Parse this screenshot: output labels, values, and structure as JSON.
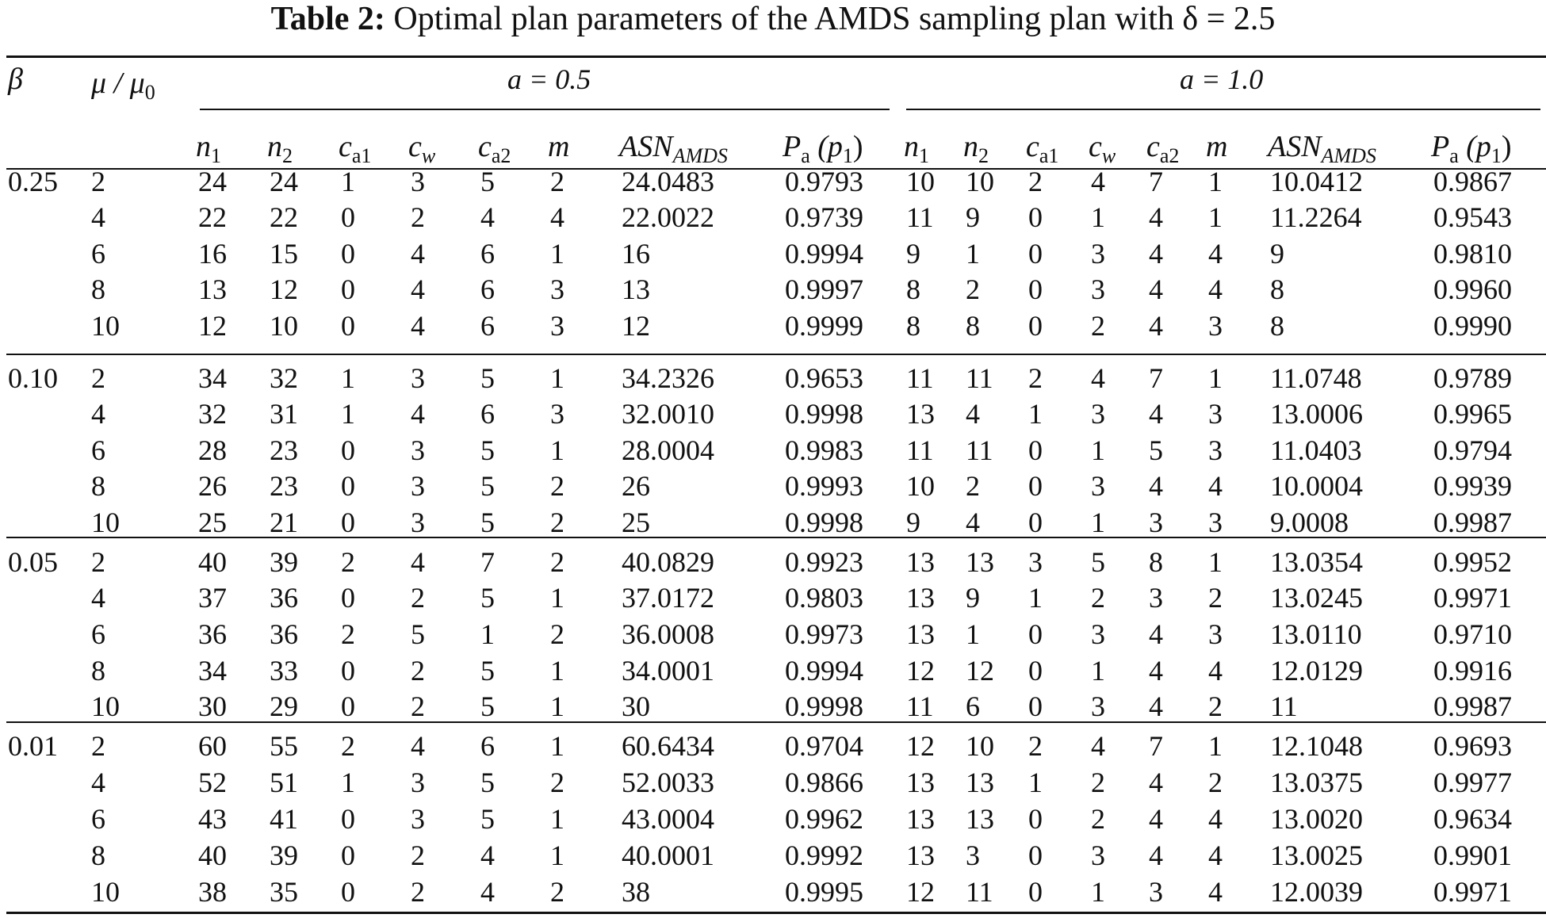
{
  "title": {
    "label": "Table 2:",
    "text": "Optimal plan parameters of the AMDS sampling plan with δ = 2.5"
  },
  "header": {
    "beta": "β",
    "ratio": "μ / μ",
    "ratio_sub": "0",
    "group_a": "a = 0.5",
    "group_b": "a = 1.0",
    "cols": [
      {
        "main": "n",
        "sub": "1"
      },
      {
        "main": "n",
        "sub": "2"
      },
      {
        "main": "c",
        "sub": "a1"
      },
      {
        "main": "c",
        "sub": "w"
      },
      {
        "main": "c",
        "sub": "a2"
      },
      {
        "main": "m",
        "sub": ""
      },
      {
        "main": "ASN",
        "sub": "AMDS"
      },
      {
        "main": "P",
        "sub": "a",
        "tail": " (p",
        "tail_sub": "1",
        "close": ")"
      }
    ]
  },
  "rows": [
    {
      "beta": "0.25",
      "ratio": "2",
      "a05": [
        "24",
        "24",
        "1",
        "3",
        "5",
        "2",
        "24.0483",
        "0.9793"
      ],
      "a10": [
        "10",
        "10",
        "2",
        "4",
        "7",
        "1",
        "10.0412",
        "0.9867"
      ]
    },
    {
      "beta": "",
      "ratio": "4",
      "a05": [
        "22",
        "22",
        "0",
        "2",
        "4",
        "4",
        "22.0022",
        "0.9739"
      ],
      "a10": [
        "11",
        "9",
        "0",
        "1",
        "4",
        "1",
        "11.2264",
        "0.9543"
      ]
    },
    {
      "beta": "",
      "ratio": "6",
      "a05": [
        "16",
        "15",
        "0",
        "4",
        "6",
        "1",
        "16",
        "0.9994"
      ],
      "a10": [
        "9",
        "1",
        "0",
        "3",
        "4",
        "4",
        "9",
        "0.9810"
      ]
    },
    {
      "beta": "",
      "ratio": "8",
      "a05": [
        "13",
        "12",
        "0",
        "4",
        "6",
        "3",
        "13",
        "0.9997"
      ],
      "a10": [
        "8",
        "2",
        "0",
        "3",
        "4",
        "4",
        "8",
        "0.9960"
      ]
    },
    {
      "beta": "",
      "ratio": "10",
      "a05": [
        "12",
        "10",
        "0",
        "4",
        "6",
        "3",
        "12",
        "0.9999"
      ],
      "a10": [
        "8",
        "8",
        "0",
        "2",
        "4",
        "3",
        "8",
        "0.9990"
      ]
    },
    {
      "beta": "0.10",
      "ratio": "2",
      "a05": [
        "34",
        "32",
        "1",
        "3",
        "5",
        "1",
        "34.2326",
        "0.9653"
      ],
      "a10": [
        "11",
        "11",
        "2",
        "4",
        "7",
        "1",
        "11.0748",
        "0.9789"
      ]
    },
    {
      "beta": "",
      "ratio": "4",
      "a05": [
        "32",
        "31",
        "1",
        "4",
        "6",
        "3",
        "32.0010",
        "0.9998"
      ],
      "a10": [
        "13",
        "4",
        "1",
        "3",
        "4",
        "3",
        "13.0006",
        "0.9965"
      ]
    },
    {
      "beta": "",
      "ratio": "6",
      "a05": [
        "28",
        "23",
        "0",
        "3",
        "5",
        "1",
        "28.0004",
        "0.9983"
      ],
      "a10": [
        "11",
        "11",
        "0",
        "1",
        "5",
        "3",
        "11.0403",
        "0.9794"
      ]
    },
    {
      "beta": "",
      "ratio": "8",
      "a05": [
        "26",
        "23",
        "0",
        "3",
        "5",
        "2",
        "26",
        "0.9993"
      ],
      "a10": [
        "10",
        "2",
        "0",
        "3",
        "4",
        "4",
        "10.0004",
        "0.9939"
      ]
    },
    {
      "beta": "",
      "ratio": "10",
      "a05": [
        "25",
        "21",
        "0",
        "3",
        "5",
        "2",
        "25",
        "0.9998"
      ],
      "a10": [
        "9",
        "4",
        "0",
        "1",
        "3",
        "3",
        "9.0008",
        "0.9987"
      ]
    },
    {
      "beta": "0.05",
      "ratio": "2",
      "a05": [
        "40",
        "39",
        "2",
        "4",
        "7",
        "2",
        "40.0829",
        "0.9923"
      ],
      "a10": [
        "13",
        "13",
        "3",
        "5",
        "8",
        "1",
        "13.0354",
        "0.9952"
      ]
    },
    {
      "beta": "",
      "ratio": "4",
      "a05": [
        "37",
        "36",
        "0",
        "2",
        "5",
        "1",
        "37.0172",
        "0.9803"
      ],
      "a10": [
        "13",
        "9",
        "1",
        "2",
        "3",
        "2",
        "13.0245",
        "0.9971"
      ]
    },
    {
      "beta": "",
      "ratio": "6",
      "a05": [
        "36",
        "36",
        "2",
        "5",
        "1",
        "2",
        "36.0008",
        "0.9973"
      ],
      "a10": [
        "13",
        "1",
        "0",
        "3",
        "4",
        "3",
        "13.0110",
        "0.9710"
      ]
    },
    {
      "beta": "",
      "ratio": "8",
      "a05": [
        "34",
        "33",
        "0",
        "2",
        "5",
        "1",
        "34.0001",
        "0.9994"
      ],
      "a10": [
        "12",
        "12",
        "0",
        "1",
        "4",
        "4",
        "12.0129",
        "0.9916"
      ]
    },
    {
      "beta": "",
      "ratio": "10",
      "a05": [
        "30",
        "29",
        "0",
        "2",
        "5",
        "1",
        "30",
        "0.9998"
      ],
      "a10": [
        "11",
        "6",
        "0",
        "3",
        "4",
        "2",
        "11",
        "0.9987"
      ]
    },
    {
      "beta": "0.01",
      "ratio": "2",
      "a05": [
        "60",
        "55",
        "2",
        "4",
        "6",
        "1",
        "60.6434",
        "0.9704"
      ],
      "a10": [
        "12",
        "10",
        "2",
        "4",
        "7",
        "1",
        "12.1048",
        "0.9693"
      ]
    },
    {
      "beta": "",
      "ratio": "4",
      "a05": [
        "52",
        "51",
        "1",
        "3",
        "5",
        "2",
        "52.0033",
        "0.9866"
      ],
      "a10": [
        "13",
        "13",
        "1",
        "2",
        "4",
        "2",
        "13.0375",
        "0.9977"
      ]
    },
    {
      "beta": "",
      "ratio": "6",
      "a05": [
        "43",
        "41",
        "0",
        "3",
        "5",
        "1",
        "43.0004",
        "0.9962"
      ],
      "a10": [
        "13",
        "13",
        "0",
        "2",
        "4",
        "4",
        "13.0020",
        "0.9634"
      ]
    },
    {
      "beta": "",
      "ratio": "8",
      "a05": [
        "40",
        "39",
        "0",
        "2",
        "4",
        "1",
        "40.0001",
        "0.9992"
      ],
      "a10": [
        "13",
        "3",
        "0",
        "3",
        "4",
        "4",
        "13.0025",
        "0.9901"
      ]
    },
    {
      "beta": "",
      "ratio": "10",
      "a05": [
        "38",
        "35",
        "0",
        "2",
        "4",
        "2",
        "38",
        "0.9995"
      ],
      "a10": [
        "12",
        "11",
        "0",
        "1",
        "3",
        "4",
        "12.0039",
        "0.9971"
      ]
    }
  ]
}
